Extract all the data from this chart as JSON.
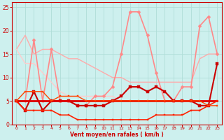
{
  "bg_color": "#cdf0ee",
  "grid_color": "#b0ddd8",
  "xlabel": "Vent moyen/en rafales ( km/h )",
  "xlim": [
    -0.5,
    23.5
  ],
  "ylim": [
    0,
    26
  ],
  "yticks": [
    0,
    5,
    10,
    15,
    20,
    25
  ],
  "xticks": [
    0,
    1,
    2,
    3,
    4,
    5,
    6,
    7,
    8,
    9,
    10,
    11,
    12,
    13,
    14,
    15,
    16,
    17,
    18,
    19,
    20,
    21,
    22,
    23
  ],
  "lines": [
    {
      "x": [
        0,
        1,
        2,
        3,
        4,
        5,
        6,
        7,
        8,
        9,
        10,
        11,
        12,
        13,
        14,
        15,
        16,
        17,
        18,
        19,
        20,
        21,
        22,
        23
      ],
      "y": [
        16,
        19,
        15,
        16,
        16,
        15,
        14,
        14,
        13,
        12,
        11,
        10,
        10,
        9,
        9,
        9,
        9,
        9,
        9,
        9,
        9,
        14,
        15,
        15
      ],
      "color": "#ffaaaa",
      "lw": 1.0,
      "marker": null
    },
    {
      "x": [
        0,
        1,
        2,
        3,
        4,
        5,
        6,
        7,
        8,
        9,
        10,
        11,
        12,
        13,
        14,
        15,
        16,
        17,
        18,
        19,
        20,
        21,
        22,
        23
      ],
      "y": [
        16,
        13,
        13,
        11,
        9,
        7,
        6,
        6,
        6,
        6,
        6,
        6,
        5,
        5,
        5,
        5,
        5,
        5,
        5,
        5,
        5,
        5,
        5,
        5
      ],
      "color": "#ffcccc",
      "lw": 1.0,
      "marker": null
    },
    {
      "x": [
        0,
        1,
        2,
        3,
        4,
        5,
        6,
        7,
        8,
        9,
        10,
        11,
        12,
        13,
        14,
        15,
        16,
        17,
        18,
        19,
        20,
        21,
        22,
        23
      ],
      "y": [
        5,
        5,
        18,
        5,
        16,
        5,
        5,
        4,
        4,
        6,
        6,
        8,
        15,
        24,
        24,
        19,
        11,
        5,
        5,
        8,
        8,
        21,
        23,
        15
      ],
      "color": "#ff8888",
      "lw": 1.2,
      "marker": "D",
      "ms": 2.5
    },
    {
      "x": [
        0,
        1,
        2,
        3,
        4,
        5,
        6,
        7,
        8,
        9,
        10,
        11,
        12,
        13,
        14,
        15,
        16,
        17,
        18,
        19,
        20,
        21,
        22,
        23
      ],
      "y": [
        5,
        3,
        7,
        3,
        5,
        5,
        5,
        4,
        4,
        4,
        4,
        5,
        6,
        8,
        8,
        7,
        8,
        7,
        5,
        5,
        5,
        4,
        4,
        13
      ],
      "color": "#cc0000",
      "lw": 1.5,
      "marker": "s",
      "ms": 2.5
    },
    {
      "x": [
        0,
        1,
        2,
        3,
        4,
        5,
        6,
        7,
        8,
        9,
        10,
        11,
        12,
        13,
        14,
        15,
        16,
        17,
        18,
        19,
        20,
        21,
        22,
        23
      ],
      "y": [
        5,
        5,
        5,
        5,
        5,
        5,
        5,
        5,
        5,
        5,
        5,
        5,
        5,
        5,
        5,
        5,
        5,
        5,
        5,
        5,
        5,
        5,
        5,
        5
      ],
      "color": "#dd0000",
      "lw": 2.0,
      "marker": null
    },
    {
      "x": [
        0,
        1,
        2,
        3,
        4,
        5,
        6,
        7,
        8,
        9,
        10,
        11,
        12,
        13,
        14,
        15,
        16,
        17,
        18,
        19,
        20,
        21,
        22,
        23
      ],
      "y": [
        5,
        3,
        3,
        3,
        3,
        2,
        2,
        1,
        1,
        1,
        1,
        1,
        1,
        1,
        1,
        1,
        2,
        2,
        2,
        2,
        3,
        3,
        4,
        5
      ],
      "color": "#ff2200",
      "lw": 1.2,
      "marker": "s",
      "ms": 2.0
    },
    {
      "x": [
        0,
        1,
        2,
        3,
        4,
        5,
        6,
        7,
        8,
        9,
        10,
        11,
        12,
        13,
        14,
        15,
        16,
        17,
        18,
        19,
        20,
        21,
        22,
        23
      ],
      "y": [
        5,
        7,
        7,
        7,
        5,
        6,
        6,
        6,
        5,
        5,
        5,
        5,
        5,
        5,
        5,
        5,
        5,
        5,
        5,
        5,
        5,
        5,
        4,
        4
      ],
      "color": "#ff4400",
      "lw": 1.0,
      "marker": "s",
      "ms": 2.0
    }
  ]
}
